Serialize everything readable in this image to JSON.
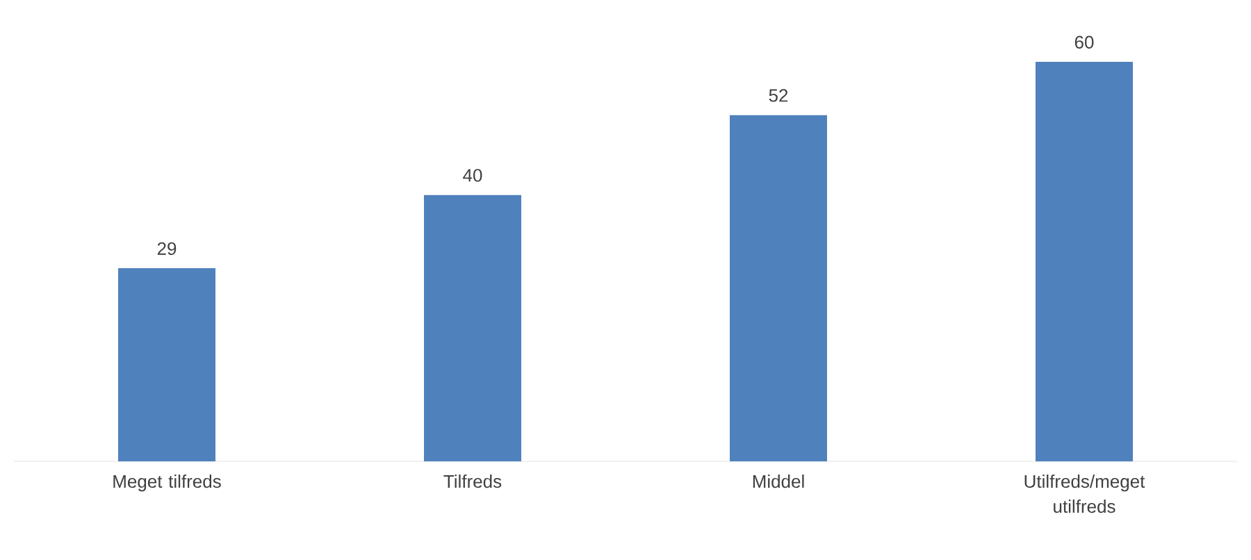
{
  "chart_data": {
    "type": "bar",
    "categories": [
      "Meget tilfreds",
      "Tilfreds",
      "Middel",
      "Utilfreds/meget utilfreds"
    ],
    "values": [
      29,
      40,
      52,
      60
    ],
    "color": "#4f81bd",
    "data_labels": true
  }
}
